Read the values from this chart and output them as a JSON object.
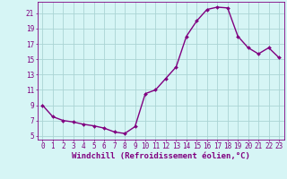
{
  "x": [
    0,
    1,
    2,
    3,
    4,
    5,
    6,
    7,
    8,
    9,
    10,
    11,
    12,
    13,
    14,
    15,
    16,
    17,
    18,
    19,
    20,
    21,
    22,
    23
  ],
  "y": [
    9.0,
    7.5,
    7.0,
    6.8,
    6.5,
    6.3,
    6.0,
    5.5,
    5.3,
    6.2,
    10.5,
    11.0,
    12.5,
    14.0,
    18.0,
    20.0,
    21.5,
    21.8,
    21.7,
    18.0,
    16.5,
    15.7,
    16.5,
    15.2
  ],
  "line_color": "#800080",
  "marker": "D",
  "marker_size": 2.0,
  "bg_color": "#d6f5f5",
  "grid_color": "#aad4d4",
  "xlabel": "Windchill (Refroidissement éolien,°C)",
  "xlim_min": -0.5,
  "xlim_max": 23.5,
  "ylim_min": 4.5,
  "ylim_max": 22.5,
  "yticks": [
    5,
    7,
    9,
    11,
    13,
    15,
    17,
    19,
    21
  ],
  "xticks": [
    0,
    1,
    2,
    3,
    4,
    5,
    6,
    7,
    8,
    9,
    10,
    11,
    12,
    13,
    14,
    15,
    16,
    17,
    18,
    19,
    20,
    21,
    22,
    23
  ],
  "title_color": "#800080",
  "axis_color": "#800080",
  "tick_font_size": 5.5,
  "xlabel_font_size": 6.5,
  "line_width": 1.0
}
